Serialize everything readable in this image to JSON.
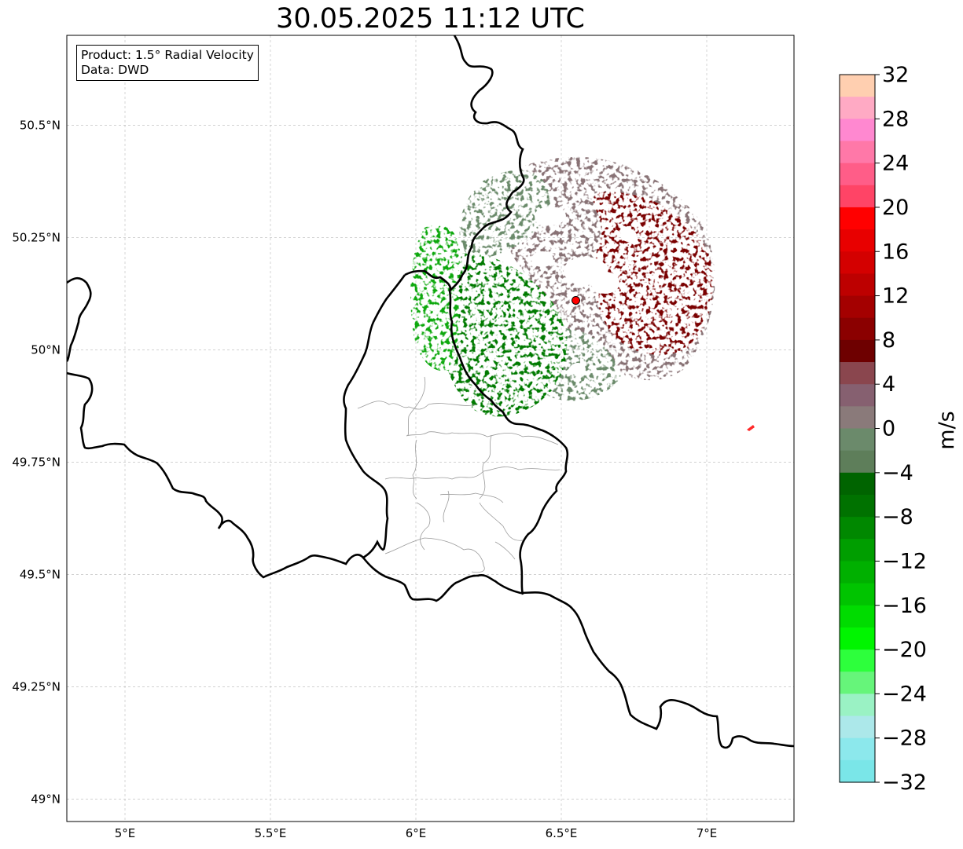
{
  "title": "30.05.2025 11:12 UTC",
  "info_box": {
    "product_line": "Product: 1.5° Radial Velocity",
    "data_line": "Data: DWD"
  },
  "map": {
    "lon_range": [
      4.8,
      7.3
    ],
    "lat_range": [
      48.95,
      50.7
    ],
    "lon_ticks": [
      {
        "value": 5.0,
        "label": "5°E"
      },
      {
        "value": 5.5,
        "label": "5.5°E"
      },
      {
        "value": 6.0,
        "label": "6°E"
      },
      {
        "value": 6.5,
        "label": "6.5°E"
      },
      {
        "value": 7.0,
        "label": "7°E"
      }
    ],
    "lat_ticks": [
      {
        "value": 49.0,
        "label": "49°N"
      },
      {
        "value": 49.25,
        "label": "49.25°N"
      },
      {
        "value": 49.5,
        "label": "49.5°N"
      },
      {
        "value": 49.75,
        "label": "49.75°N"
      },
      {
        "value": 50.0,
        "label": "50°N"
      },
      {
        "value": 50.25,
        "label": "50.25°N"
      },
      {
        "value": 50.5,
        "label": "50.5°N"
      }
    ],
    "radar_site": {
      "lon": 6.55,
      "lat": 50.11,
      "color": "#ff0000"
    },
    "gridlines": true
  },
  "colorbar": {
    "label": "m/s",
    "range": [
      -32,
      32
    ],
    "ticks": [
      32,
      28,
      24,
      20,
      16,
      12,
      8,
      4,
      0,
      -4,
      -8,
      -12,
      -16,
      -20,
      -24,
      -28,
      -32
    ],
    "tick_labels": [
      "32",
      "28",
      "24",
      "20",
      "16",
      "12",
      "8",
      "4",
      "0",
      "−4",
      "−8",
      "−12",
      "−16",
      "−20",
      "−24",
      "−28",
      "−32"
    ],
    "colors_top_to_bottom": [
      "#ffcfb0",
      "#ffaac4",
      "#ff88d0",
      "#ff78a8",
      "#ff5d88",
      "#ff4466",
      "#ff0000",
      "#e80000",
      "#d40000",
      "#bd0000",
      "#a40000",
      "#8b0000",
      "#6e0000",
      "#8a464e",
      "#866070",
      "#8a7a7a",
      "#6b8a6b",
      "#5e7e5a",
      "#006400",
      "#007200",
      "#008800",
      "#009e00",
      "#00b000",
      "#00c400",
      "#00dc00",
      "#00f500",
      "#2dff3c",
      "#66f57a",
      "#9af2c4",
      "#ace8ea",
      "#8ce8ec",
      "#7ae6e8"
    ]
  }
}
